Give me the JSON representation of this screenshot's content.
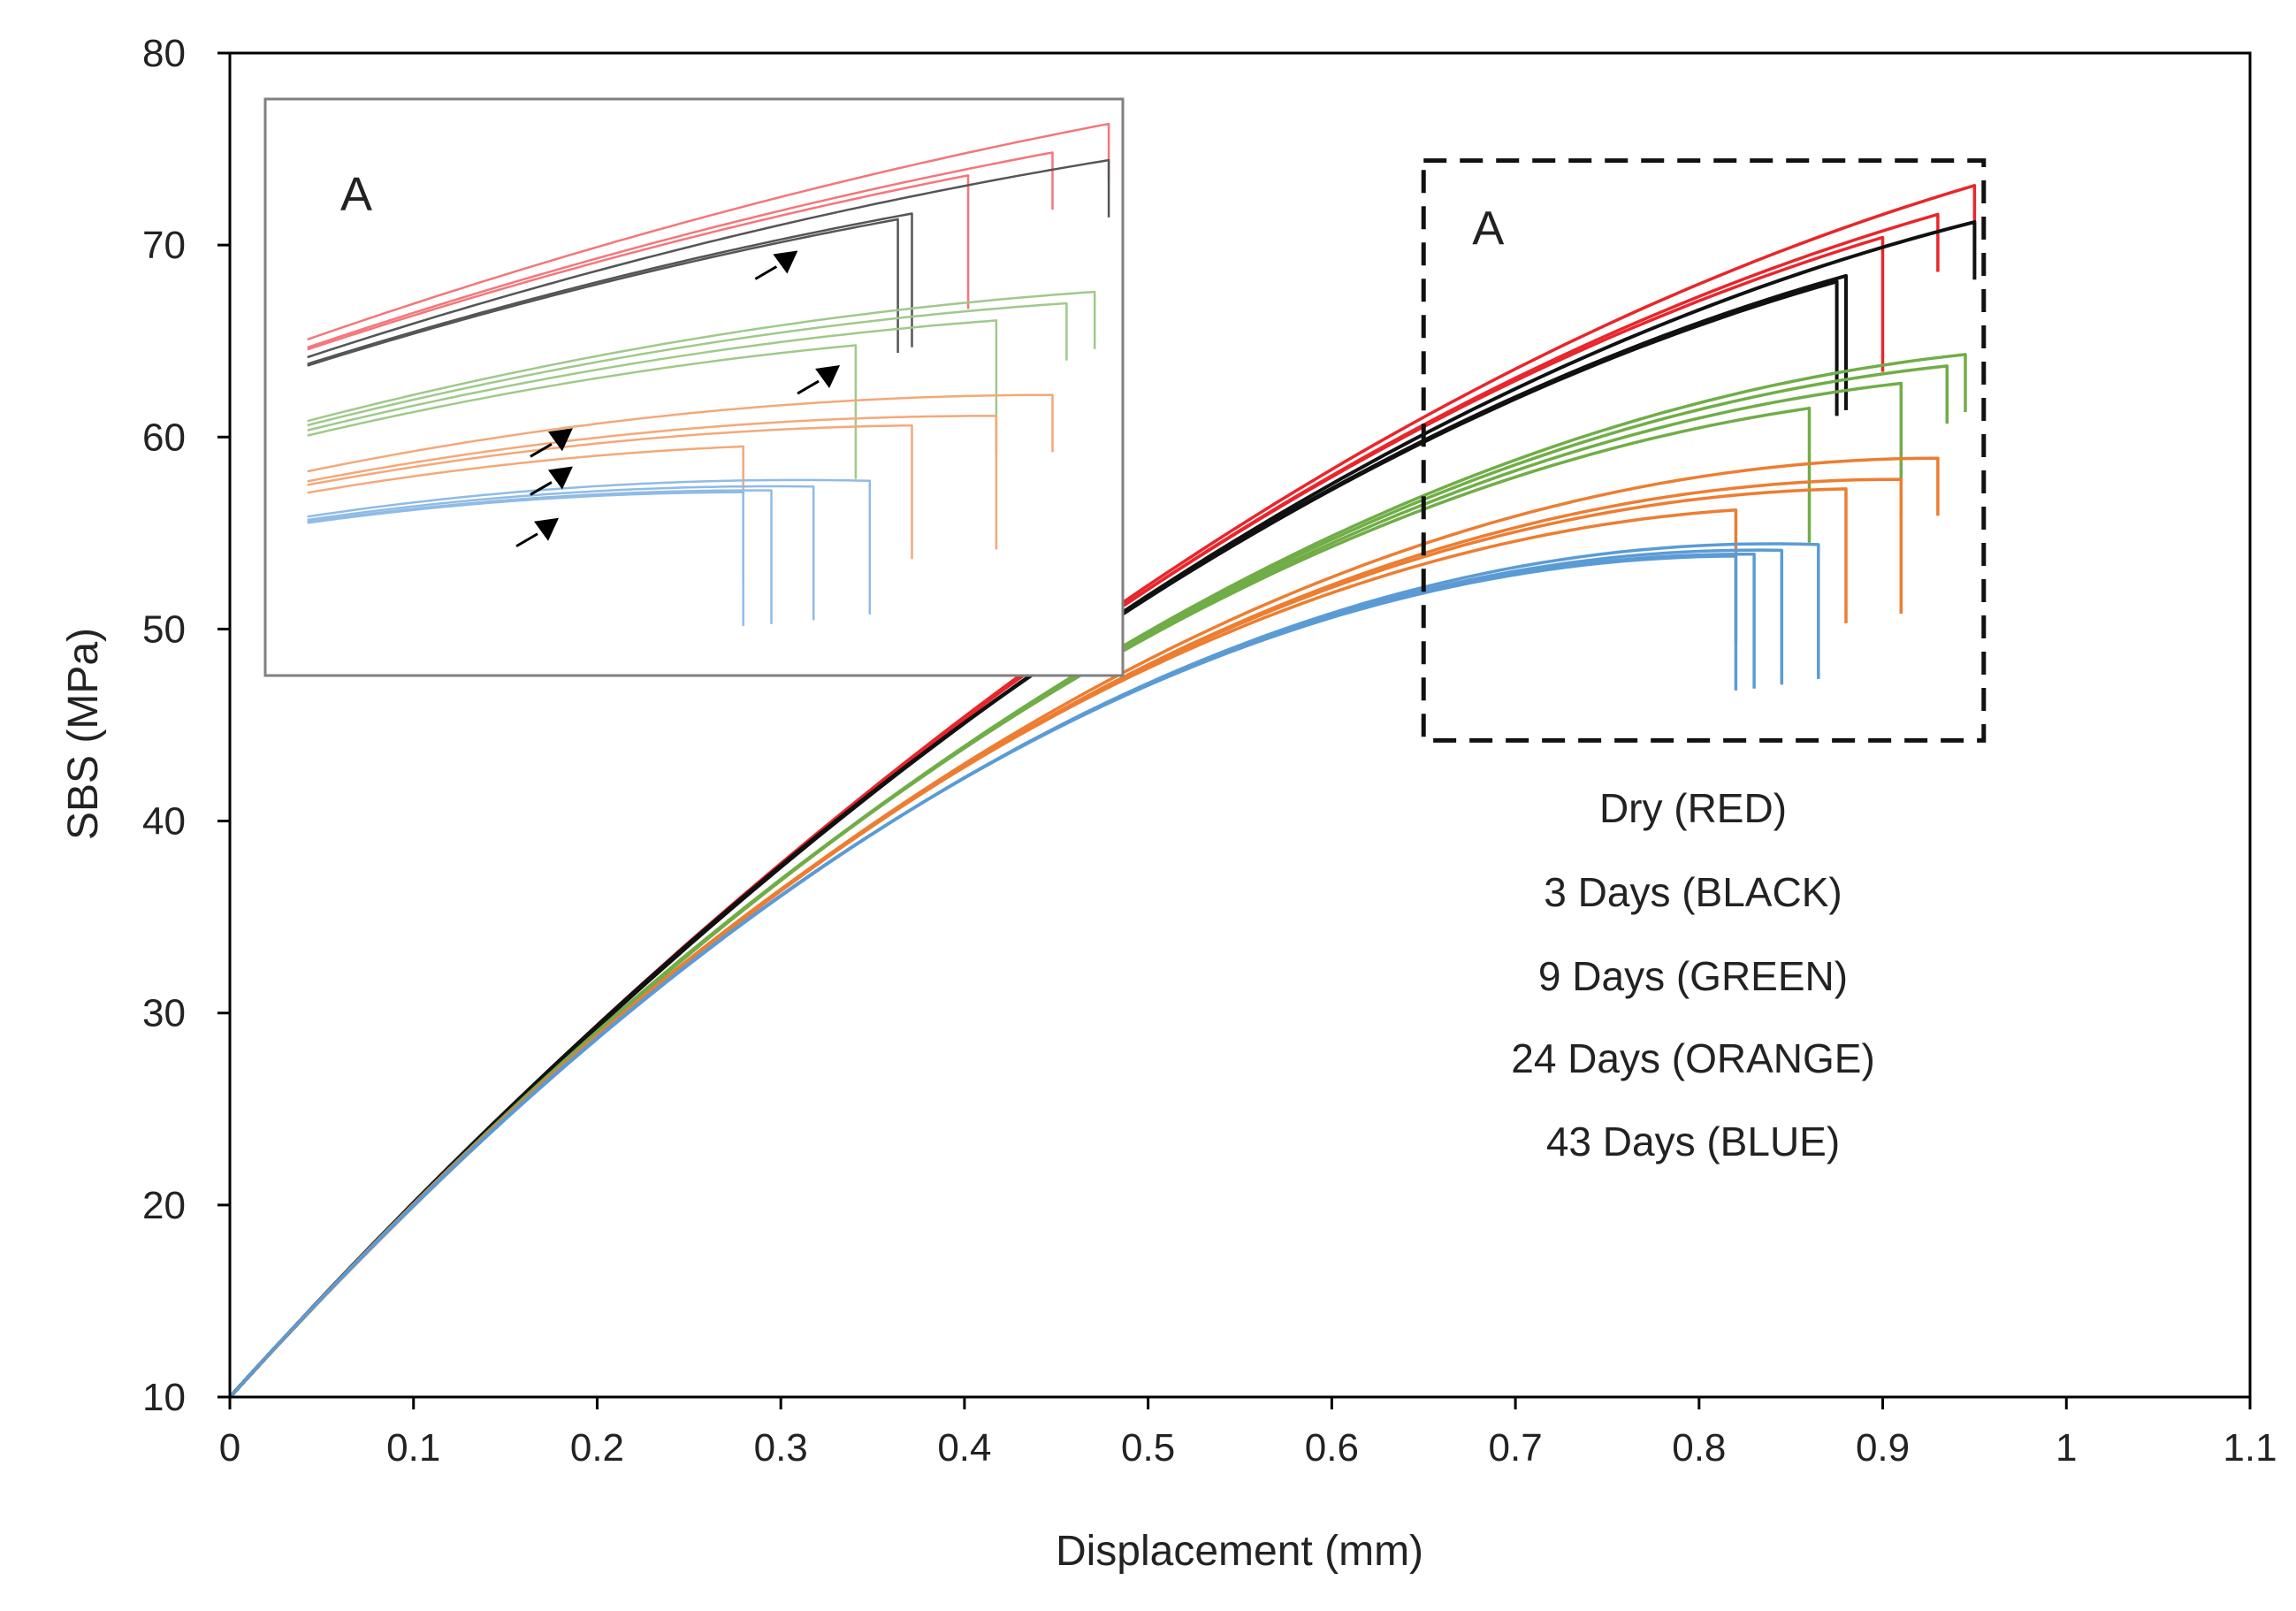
{
  "chart_data": {
    "type": "line",
    "title": "",
    "xlabel": "Displacement (mm)",
    "ylabel": "SBS (MPa)",
    "xlim": [
      0,
      1.1
    ],
    "ylim": [
      10,
      80
    ],
    "x_ticks": [
      "0",
      "0.1",
      "0.2",
      "0.3",
      "0.4",
      "0.5",
      "0.6",
      "0.7",
      "0.8",
      "0.9",
      "1",
      "1.1"
    ],
    "y_ticks": [
      "10",
      "20",
      "30",
      "40",
      "50",
      "60",
      "70",
      "80"
    ],
    "grid": false,
    "legend": [
      {
        "label": "Dry (RED)",
        "color": "#e8262b"
      },
      {
        "label": "3 Days (BLACK)",
        "color": "#111111"
      },
      {
        "label": "9 Days (GREEN)",
        "color": "#70ad47"
      },
      {
        "label": "24 Days (ORANGE)",
        "color": "#ed7d31"
      },
      {
        "label": "43 Days (BLUE)",
        "color": "#5b9bd5"
      }
    ],
    "zoom_box": {
      "label": "A",
      "x_range": [
        0.65,
        0.955
      ],
      "y_range": [
        44.2,
        74.4
      ]
    },
    "inset": {
      "label": "A",
      "x_range": [
        0.65,
        0.955
      ],
      "y_range": [
        44.2,
        74.4
      ],
      "arrow_count": 5
    },
    "series": [
      {
        "name": "Dry (RED)",
        "color": "#e8262b",
        "specimens": [
          {
            "failure_x": 0.95,
            "peak_y": 73.1
          },
          {
            "failure_x": 0.93,
            "peak_y": 71.6
          },
          {
            "failure_x": 0.9,
            "peak_y": 70.4
          }
        ]
      },
      {
        "name": "3 Days (BLACK)",
        "color": "#111111",
        "specimens": [
          {
            "failure_x": 0.95,
            "peak_y": 71.2
          },
          {
            "failure_x": 0.88,
            "peak_y": 68.4
          },
          {
            "failure_x": 0.875,
            "peak_y": 68.1
          }
        ]
      },
      {
        "name": "9 Days (GREEN)",
        "color": "#70ad47",
        "specimens": [
          {
            "failure_x": 0.945,
            "peak_y": 64.3
          },
          {
            "failure_x": 0.935,
            "peak_y": 63.7
          },
          {
            "failure_x": 0.91,
            "peak_y": 62.8
          },
          {
            "failure_x": 0.86,
            "peak_y": 61.5
          }
        ]
      },
      {
        "name": "24 Days (ORANGE)",
        "color": "#ed7d31",
        "specimens": [
          {
            "failure_x": 0.93,
            "peak_y": 58.9
          },
          {
            "failure_x": 0.91,
            "peak_y": 57.8
          },
          {
            "failure_x": 0.88,
            "peak_y": 57.3
          },
          {
            "failure_x": 0.82,
            "peak_y": 56.2
          }
        ]
      },
      {
        "name": "43 Days (BLUE)",
        "color": "#5b9bd5",
        "specimens": [
          {
            "failure_x": 0.865,
            "peak_y": 54.4
          },
          {
            "failure_x": 0.845,
            "peak_y": 54.1
          },
          {
            "failure_x": 0.83,
            "peak_y": 53.9
          },
          {
            "failure_x": 0.82,
            "peak_y": 53.8
          }
        ]
      }
    ]
  }
}
